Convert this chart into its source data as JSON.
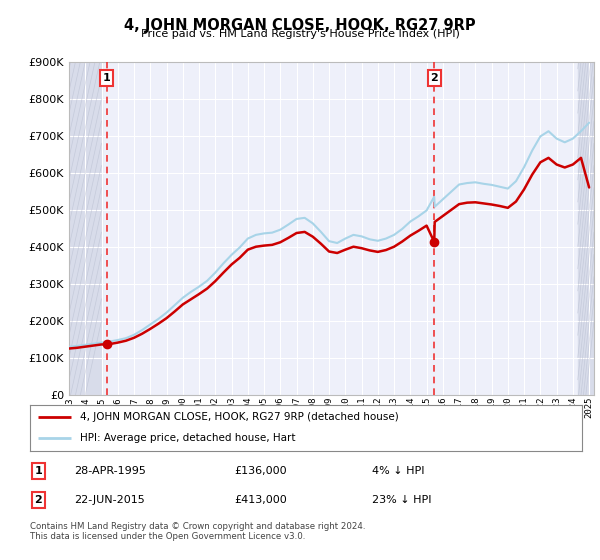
{
  "title": "4, JOHN MORGAN CLOSE, HOOK, RG27 9RP",
  "subtitle": "Price paid vs. HM Land Registry's House Price Index (HPI)",
  "legend_line1": "4, JOHN MORGAN CLOSE, HOOK, RG27 9RP (detached house)",
  "legend_line2": "HPI: Average price, detached house, Hart",
  "transaction1_date": "28-APR-1995",
  "transaction1_price": 136000,
  "transaction1_pct": "4% ↓ HPI",
  "transaction1_year": 1995.32,
  "transaction2_date": "22-JUN-2015",
  "transaction2_price": 413000,
  "transaction2_pct": "23% ↓ HPI",
  "transaction2_year": 2015.47,
  "footnote": "Contains HM Land Registry data © Crown copyright and database right 2024.\nThis data is licensed under the Open Government Licence v3.0.",
  "hpi_color": "#a8d4e8",
  "price_paid_color": "#cc0000",
  "vline_color": "#ee3333",
  "background_plot": "#eef0fa",
  "background_hatch_color": "#d8dcea",
  "grid_color": "#ffffff",
  "ylim_min": 0,
  "ylim_max": 900000,
  "years": [
    1993.0,
    1993.5,
    1994.0,
    1994.5,
    1995.0,
    1995.3,
    1995.5,
    1996.0,
    1996.5,
    1997.0,
    1997.5,
    1998.0,
    1998.5,
    1999.0,
    1999.5,
    2000.0,
    2000.5,
    2001.0,
    2001.5,
    2002.0,
    2002.5,
    2003.0,
    2003.5,
    2004.0,
    2004.5,
    2005.0,
    2005.5,
    2006.0,
    2006.5,
    2007.0,
    2007.5,
    2008.0,
    2008.5,
    2009.0,
    2009.5,
    2010.0,
    2010.5,
    2011.0,
    2011.5,
    2012.0,
    2012.5,
    2013.0,
    2013.5,
    2014.0,
    2014.5,
    2015.0,
    2015.47,
    2015.5,
    2016.0,
    2016.5,
    2017.0,
    2017.5,
    2018.0,
    2018.5,
    2019.0,
    2019.5,
    2020.0,
    2020.5,
    2021.0,
    2021.5,
    2022.0,
    2022.5,
    2023.0,
    2023.5,
    2024.0,
    2024.5,
    2025.0
  ],
  "hpi_values": [
    130000,
    132000,
    135000,
    138000,
    141000,
    142000,
    144000,
    148000,
    153000,
    162000,
    175000,
    190000,
    205000,
    222000,
    242000,
    262000,
    278000,
    292000,
    308000,
    330000,
    355000,
    378000,
    398000,
    422000,
    432000,
    436000,
    438000,
    446000,
    460000,
    475000,
    478000,
    463000,
    440000,
    415000,
    410000,
    422000,
    432000,
    428000,
    420000,
    416000,
    422000,
    432000,
    448000,
    468000,
    482000,
    498000,
    535000,
    508000,
    528000,
    548000,
    568000,
    572000,
    574000,
    570000,
    567000,
    562000,
    557000,
    577000,
    615000,
    660000,
    698000,
    712000,
    692000,
    682000,
    692000,
    712000,
    735000
  ],
  "pp_values": [
    125000,
    127000,
    130000,
    133000,
    136000,
    136000,
    137000,
    141000,
    146000,
    154000,
    165000,
    178000,
    192000,
    207000,
    225000,
    244000,
    258000,
    272000,
    287000,
    307000,
    330000,
    352000,
    370000,
    392000,
    400000,
    403000,
    405000,
    412000,
    424000,
    437000,
    440000,
    427000,
    408000,
    387000,
    383000,
    392000,
    400000,
    396000,
    390000,
    386000,
    391000,
    400000,
    414000,
    430000,
    443000,
    457000,
    413000,
    467000,
    483000,
    499000,
    515000,
    519000,
    520000,
    517000,
    514000,
    510000,
    505000,
    522000,
    555000,
    595000,
    628000,
    640000,
    622000,
    614000,
    622000,
    640000,
    560000
  ]
}
